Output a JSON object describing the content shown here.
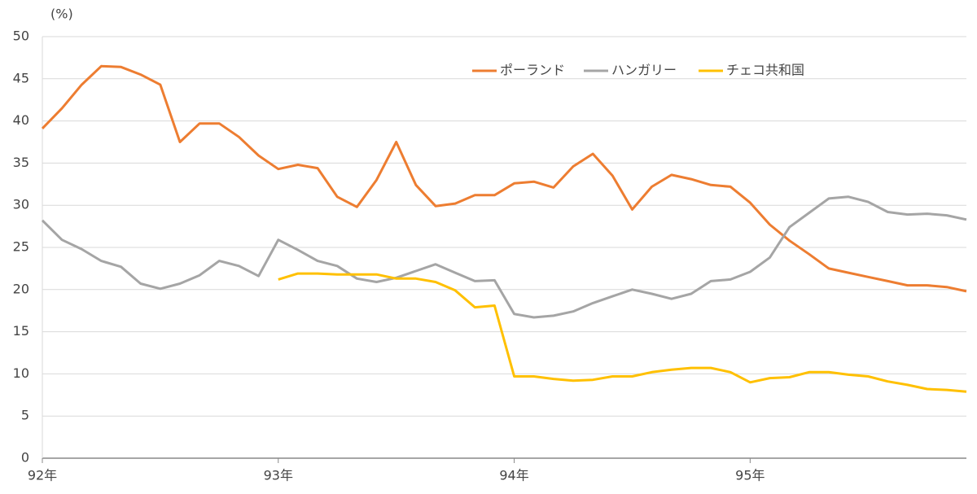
{
  "chart_data": {
    "type": "line",
    "y_label": "(%)",
    "categories": [
      "92年",
      null,
      null,
      null,
      null,
      null,
      null,
      null,
      null,
      null,
      null,
      null,
      "93年",
      null,
      null,
      null,
      null,
      null,
      null,
      null,
      null,
      null,
      null,
      null,
      "94年",
      null,
      null,
      null,
      null,
      null,
      null,
      null,
      null,
      null,
      null,
      null,
      "95年",
      null,
      null,
      null,
      null,
      null,
      null,
      null,
      null,
      null,
      null,
      null
    ],
    "series": [
      {
        "name": "ポーランド",
        "color": "#ED7D31",
        "values": [
          39.1,
          41.5,
          44.3,
          46.5,
          46.4,
          45.5,
          44.3,
          37.5,
          39.7,
          39.7,
          38.1,
          35.9,
          34.3,
          34.8,
          34.4,
          31.0,
          29.8,
          33.0,
          37.5,
          32.4,
          29.9,
          30.2,
          31.2,
          31.2,
          32.6,
          32.8,
          32.1,
          34.6,
          36.1,
          33.5,
          29.5,
          32.2,
          33.6,
          33.1,
          32.4,
          32.2,
          30.3,
          27.7,
          25.8,
          24.2,
          22.5,
          22.0,
          21.5,
          21.0,
          20.5,
          20.5,
          20.3,
          19.8
        ]
      },
      {
        "name": "ハンガリー",
        "color": "#A5A5A5",
        "values": [
          28.2,
          25.9,
          24.8,
          23.4,
          22.7,
          20.7,
          20.1,
          20.7,
          21.7,
          23.4,
          22.8,
          21.6,
          25.9,
          24.7,
          23.4,
          22.8,
          21.3,
          20.9,
          21.4,
          22.2,
          23.0,
          22.0,
          21.0,
          21.1,
          17.1,
          16.7,
          16.9,
          17.4,
          18.4,
          19.2,
          20.0,
          19.5,
          18.9,
          19.5,
          21.0,
          21.2,
          22.1,
          23.8,
          27.4,
          29.1,
          30.8,
          31.0,
          30.4,
          29.2,
          28.9,
          29.0,
          28.8,
          28.3
        ]
      },
      {
        "name": "チェコ共和国",
        "color": "#FFC000",
        "values": [
          null,
          null,
          null,
          null,
          null,
          null,
          null,
          null,
          null,
          null,
          null,
          null,
          21.2,
          21.9,
          21.9,
          21.8,
          21.8,
          21.8,
          21.3,
          21.3,
          20.9,
          19.9,
          17.9,
          18.1,
          9.7,
          9.7,
          9.4,
          9.2,
          9.3,
          9.7,
          9.7,
          10.2,
          10.5,
          10.7,
          10.7,
          10.2,
          9.0,
          9.5,
          9.6,
          10.2,
          10.2,
          9.9,
          9.7,
          9.1,
          8.7,
          8.2,
          8.1,
          7.9
        ]
      }
    ],
    "ylim": [
      0,
      50
    ],
    "yticks": [
      0,
      5,
      10,
      15,
      20,
      25,
      30,
      35,
      40,
      45,
      50
    ],
    "grid": true
  }
}
